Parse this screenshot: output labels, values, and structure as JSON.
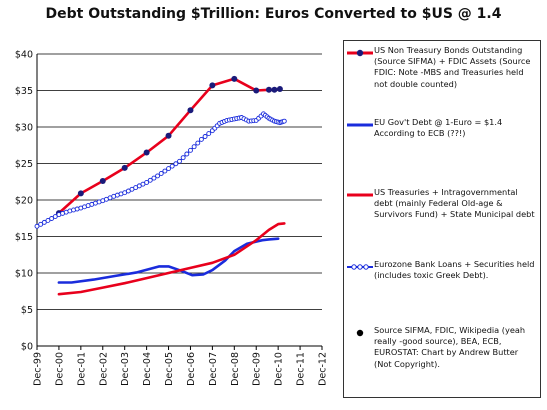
{
  "title": "Debt Outstanding $Trillion: Euros Converted to $US  @ 1.4",
  "chart_data": {
    "type": "line",
    "title": "Debt Outstanding $Trillion: Euros Converted to $US  @ 1.4",
    "xlabel": "",
    "ylabel": "",
    "x_ticks": [
      "Dec-99",
      "Dec-00",
      "Dec-01",
      "Dec-02",
      "Dec-03",
      "Dec-04",
      "Dec-05",
      "Dec-06",
      "Dec-07",
      "Dec-08",
      "Dec-09",
      "Dec-10",
      "Dec-11",
      "Dec-12"
    ],
    "y_ticks": [
      "$0",
      "$5",
      "$10",
      "$15",
      "$20",
      "$25",
      "$30",
      "$35",
      "$40"
    ],
    "xlim": [
      1999.92,
      2012.92
    ],
    "ylim": [
      0,
      40
    ],
    "grid": "horizontal",
    "legend_position": "right",
    "series": [
      {
        "name": "US Non Treasury Bonds Outstanding (Source SIFMA)  + FDIC Assets (Source FDIC: Note -MBS and Treasuries held not double counted)",
        "color": "#e8001c",
        "marker": "dot",
        "x": [
          2000.92,
          2001.92,
          2002.92,
          2003.92,
          2004.92,
          2005.92,
          2006.92,
          2007.92,
          2008.92,
          2009.92,
          2010.5,
          2010.75,
          2011.0
        ],
        "y": [
          18.2,
          20.9,
          22.6,
          24.4,
          26.5,
          28.8,
          32.3,
          35.7,
          36.6,
          35.0,
          35.1,
          35.1,
          35.2
        ],
        "markers_x": [
          2000.92,
          2001.92,
          2002.92,
          2003.92,
          2004.92,
          2005.92,
          2006.92,
          2007.92,
          2008.92,
          2009.92,
          2010.5,
          2010.75,
          2011.0
        ]
      },
      {
        "name": "EU Gov't Debt @ 1-Euro = $1.4 According to ECB (??!)",
        "color": "#1a2cdc",
        "marker": "none",
        "x": [
          2000.92,
          2001.5,
          2002.5,
          2003.5,
          2004.5,
          2005.5,
          2005.92,
          2006.5,
          2007.0,
          2007.5,
          2007.92,
          2008.5,
          2008.92,
          2009.5,
          2009.92,
          2010.2,
          2010.5,
          2010.92
        ],
        "y": [
          8.7,
          8.7,
          9.1,
          9.6,
          10.1,
          10.9,
          10.9,
          10.3,
          9.7,
          9.8,
          10.4,
          11.7,
          13.0,
          14.0,
          14.3,
          14.5,
          14.6,
          14.7
        ]
      },
      {
        "name": "US Treasuries + Intragovernmental debt (mainly Federal Old-age & Survivors Fund) + State Municipal debt",
        "color": "#e8001c",
        "marker": "none",
        "x": [
          2000.92,
          2001.92,
          2002.92,
          2003.92,
          2004.92,
          2005.92,
          2006.92,
          2007.92,
          2008.92,
          2009.92,
          2010.5,
          2010.92,
          2011.2
        ],
        "y": [
          7.1,
          7.4,
          8.0,
          8.6,
          9.3,
          10.0,
          10.7,
          11.4,
          12.5,
          14.5,
          15.9,
          16.7,
          16.8
        ]
      },
      {
        "name": "Eurozone Bank Loans + Securities held (includes toxic Greek Debt).",
        "color": "#1a2cdc",
        "marker": "circle",
        "x": [
          1999.92,
          2000.42,
          2000.92,
          2001.42,
          2001.92,
          2002.42,
          2002.92,
          2003.42,
          2003.92,
          2004.42,
          2004.92,
          2005.42,
          2005.92,
          2006.42,
          2006.92,
          2007.42,
          2007.92,
          2008.25,
          2008.58,
          2008.92,
          2009.25,
          2009.58,
          2009.92,
          2010.25,
          2010.5,
          2010.75,
          2011.0,
          2011.2
        ],
        "y": [
          16.4,
          17.2,
          18.0,
          18.5,
          18.9,
          19.4,
          19.9,
          20.5,
          21.0,
          21.7,
          22.4,
          23.3,
          24.3,
          25.3,
          26.8,
          28.3,
          29.5,
          30.5,
          30.9,
          31.1,
          31.3,
          30.8,
          30.9,
          31.8,
          31.2,
          30.8,
          30.6,
          30.8
        ]
      }
    ],
    "annotation_marker_label": "Source SIFMA, FDIC, Wikipedia (yeah really -good source), BEA, ECB, EUROSTAT: Chart by Andrew Butter (Not Copyright)."
  },
  "legend": {
    "items": [
      "US Non Treasury Bonds Outstanding (Source SIFMA)  + FDIC Assets (Source FDIC: Note -MBS and Treasuries held not double counted)",
      "EU Gov't Debt @ 1-Euro = $1.4 According to ECB (??!)",
      "US Treasuries + Intragovernmental debt (mainly Federal Old-age & Survivors Fund) + State Municipal debt",
      "Eurozone Bank Loans + Securities held (includes toxic Greek Debt).",
      "Source SIFMA, FDIC, Wikipedia (yeah really -good source), BEA, ECB, EUROSTAT: Chart by Andrew Butter (Not Copyright)."
    ]
  }
}
